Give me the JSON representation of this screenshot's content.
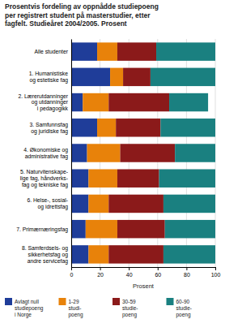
{
  "chart_data": {
    "type": "bar",
    "orientation": "horizontal",
    "stacked": true,
    "title": "Prosentvis fordeling av oppnådde studiepoeng\nper registrert student på masterstudier, etter\nfagfelt. Studieåret 2004/2005. Prosent",
    "categories": [
      "Alle studenter",
      "1. Humanistiske\nog estetiske fag",
      "2. Lærerutdanninger\nog utdanninger\ni pedagogikk",
      "3. Samfunnsfag\nog juridiske fag",
      "4. Økonomiske og\nadministrative fag",
      "5. Naturvitenskape-\nlige fag, håndverks-\nfag og tekniske fag",
      "6. Helse-, sosial-\nog idrettsfag",
      "7. Primærnæringsfag",
      "8. Samferdsels- og\nsikkerhetsfag og\nandre servicefag"
    ],
    "series": [
      {
        "name": "Avlagt null\nstudiepoeng\ni Norge",
        "color": "#1f3d99",
        "values": [
          18,
          27,
          8,
          18,
          11,
          12,
          12,
          10,
          12
        ]
      },
      {
        "name": "1-29\nstudi-\npoeng",
        "color": "#e8820a",
        "values": [
          14,
          9,
          18,
          13,
          23,
          20,
          14,
          22,
          14
        ]
      },
      {
        "name": "30-59\nstudie-\npoeng",
        "color": "#8b1a1a",
        "values": [
          27,
          19,
          42,
          31,
          38,
          29,
          38,
          33,
          38
        ]
      },
      {
        "name": "60-90\nstudie-\npoeng",
        "color": "#1a8080",
        "values": [
          41,
          45,
          27,
          38,
          28,
          39,
          36,
          35,
          36
        ]
      }
    ],
    "xlabel": "Prosent",
    "xlim": [
      0,
      100
    ],
    "xticks": [
      0,
      20,
      40,
      60,
      80,
      100
    ],
    "grid": true,
    "legend": "bottom"
  }
}
